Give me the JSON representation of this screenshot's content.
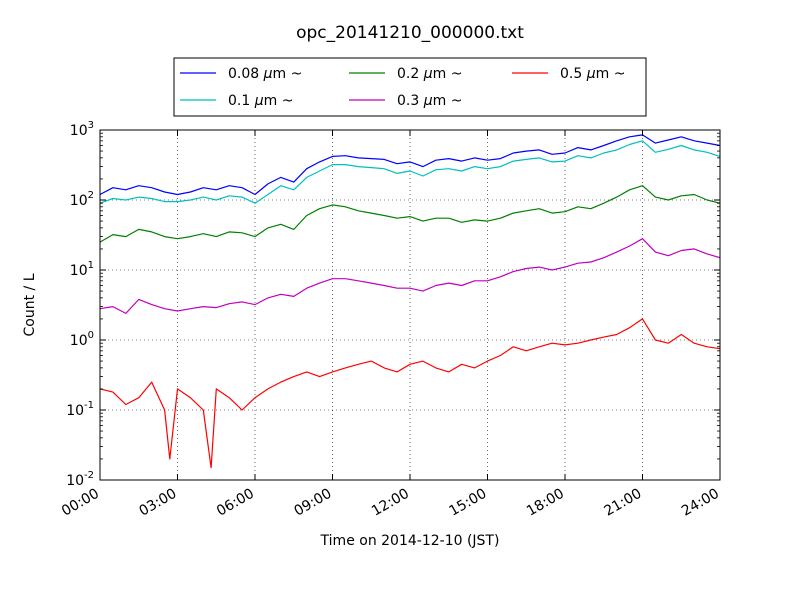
{
  "chart_data": {
    "type": "line",
    "title": "opc_20141210_000000.txt",
    "xlabel": "Time on 2014-12-10 (JST)",
    "ylabel": "Count / L",
    "y_scale": "log",
    "ylim": [
      0.01,
      1000
    ],
    "xlim": [
      "00:00",
      "24:00"
    ],
    "x_unit": "hour",
    "x_ticks": [
      {
        "hour": 0,
        "label": "00:00"
      },
      {
        "hour": 3,
        "label": "03:00"
      },
      {
        "hour": 6,
        "label": "06:00"
      },
      {
        "hour": 9,
        "label": "09:00"
      },
      {
        "hour": 12,
        "label": "12:00"
      },
      {
        "hour": 15,
        "label": "15:00"
      },
      {
        "hour": 18,
        "label": "18:00"
      },
      {
        "hour": 21,
        "label": "21:00"
      },
      {
        "hour": 24,
        "label": "24:00"
      }
    ],
    "y_ticks": [
      {
        "value": 0.01,
        "base": "10",
        "exp": "-2"
      },
      {
        "value": 0.1,
        "base": "10",
        "exp": "-1"
      },
      {
        "value": 1,
        "base": "10",
        "exp": "0"
      },
      {
        "value": 10,
        "base": "10",
        "exp": "1"
      },
      {
        "value": 100,
        "base": "10",
        "exp": "2"
      },
      {
        "value": 1000,
        "base": "10",
        "exp": "3"
      }
    ],
    "grid": true,
    "legend_position": "top",
    "series": [
      {
        "name": "0.08 μm ~",
        "legend_size": "0.08",
        "color": "#0000ff",
        "x": [
          0,
          0.5,
          1,
          1.5,
          2,
          2.5,
          3,
          3.5,
          4,
          4.5,
          5,
          5.5,
          6,
          6.5,
          7,
          7.5,
          8,
          8.5,
          9,
          9.5,
          10,
          10.5,
          11,
          11.5,
          12,
          12.5,
          13,
          13.5,
          14,
          14.5,
          15,
          15.5,
          16,
          16.5,
          17,
          17.5,
          18,
          18.5,
          19,
          19.5,
          20,
          20.5,
          21,
          21.5,
          22,
          22.5,
          23,
          23.5,
          24
        ],
        "y": [
          120,
          150,
          140,
          160,
          150,
          130,
          120,
          130,
          150,
          140,
          160,
          150,
          120,
          170,
          210,
          180,
          280,
          350,
          420,
          430,
          400,
          390,
          380,
          330,
          350,
          300,
          370,
          390,
          360,
          400,
          370,
          390,
          470,
          500,
          520,
          450,
          470,
          560,
          520,
          600,
          700,
          800,
          850,
          650,
          720,
          800,
          700,
          650,
          600
        ]
      },
      {
        "name": "0.1 μm ~",
        "legend_size": "0.1",
        "color": "#00bfbf",
        "x": [
          0,
          0.5,
          1,
          1.5,
          2,
          2.5,
          3,
          3.5,
          4,
          4.5,
          5,
          5.5,
          6,
          6.5,
          7,
          7.5,
          8,
          8.5,
          9,
          9.5,
          10,
          10.5,
          11,
          11.5,
          12,
          12.5,
          13,
          13.5,
          14,
          14.5,
          15,
          15.5,
          16,
          16.5,
          17,
          17.5,
          18,
          18.5,
          19,
          19.5,
          20,
          20.5,
          21,
          21.5,
          22,
          22.5,
          23,
          23.5,
          24
        ],
        "y": [
          90,
          105,
          100,
          110,
          105,
          95,
          95,
          100,
          110,
          100,
          115,
          110,
          90,
          120,
          160,
          140,
          210,
          260,
          320,
          320,
          300,
          290,
          280,
          240,
          260,
          220,
          270,
          280,
          260,
          300,
          280,
          300,
          360,
          380,
          400,
          350,
          360,
          430,
          400,
          470,
          520,
          620,
          700,
          480,
          530,
          600,
          520,
          480,
          420
        ]
      },
      {
        "name": "0.2 μm ~",
        "legend_size": "0.2",
        "color": "#008000",
        "x": [
          0,
          0.5,
          1,
          1.5,
          2,
          2.5,
          3,
          3.5,
          4,
          4.5,
          5,
          5.5,
          6,
          6.5,
          7,
          7.5,
          8,
          8.5,
          9,
          9.5,
          10,
          10.5,
          11,
          11.5,
          12,
          12.5,
          13,
          13.5,
          14,
          14.5,
          15,
          15.5,
          16,
          16.5,
          17,
          17.5,
          18,
          18.5,
          19,
          19.5,
          20,
          20.5,
          21,
          21.5,
          22,
          22.5,
          23,
          23.5,
          24
        ],
        "y": [
          25,
          32,
          30,
          38,
          35,
          30,
          28,
          30,
          33,
          30,
          35,
          34,
          30,
          40,
          45,
          38,
          60,
          75,
          85,
          80,
          70,
          65,
          60,
          55,
          58,
          50,
          55,
          55,
          48,
          52,
          50,
          55,
          65,
          70,
          75,
          65,
          68,
          80,
          75,
          90,
          110,
          140,
          160,
          110,
          100,
          115,
          120,
          100,
          90
        ]
      },
      {
        "name": "0.3 μm ~",
        "legend_size": "0.3",
        "color": "#bf00bf",
        "x": [
          0,
          0.5,
          1,
          1.5,
          2,
          2.5,
          3,
          3.5,
          4,
          4.5,
          5,
          5.5,
          6,
          6.5,
          7,
          7.5,
          8,
          8.5,
          9,
          9.5,
          10,
          10.5,
          11,
          11.5,
          12,
          12.5,
          13,
          13.5,
          14,
          14.5,
          15,
          15.5,
          16,
          16.5,
          17,
          17.5,
          18,
          18.5,
          19,
          19.5,
          20,
          20.5,
          21,
          21.5,
          22,
          22.5,
          23,
          23.5,
          24
        ],
        "y": [
          2.8,
          3.0,
          2.4,
          3.8,
          3.2,
          2.8,
          2.6,
          2.8,
          3.0,
          2.9,
          3.3,
          3.5,
          3.2,
          4.0,
          4.5,
          4.2,
          5.5,
          6.5,
          7.5,
          7.5,
          7.0,
          6.5,
          6.0,
          5.5,
          5.5,
          5.0,
          6.0,
          6.5,
          6.0,
          7.0,
          7.0,
          8.0,
          9.5,
          10.5,
          11,
          10,
          11,
          12.5,
          13,
          15,
          18,
          22,
          28,
          18,
          16,
          19,
          20,
          17,
          15
        ]
      },
      {
        "name": "0.5 μm ~",
        "legend_size": "0.5",
        "color": "#ff0000",
        "x": [
          0,
          0.5,
          1,
          1.5,
          2,
          2.5,
          2.7,
          3,
          3.5,
          4,
          4.3,
          4.5,
          5,
          5.5,
          6,
          6.5,
          7,
          7.5,
          8,
          8.5,
          9,
          9.5,
          10,
          10.5,
          11,
          11.5,
          12,
          12.5,
          13,
          13.5,
          14,
          14.5,
          15,
          15.5,
          16,
          16.5,
          17,
          17.5,
          18,
          18.5,
          19,
          19.5,
          20,
          20.5,
          21,
          21.5,
          22,
          22.5,
          23,
          23.5,
          24
        ],
        "y": [
          0.2,
          0.18,
          0.12,
          0.15,
          0.25,
          0.1,
          0.02,
          0.2,
          0.15,
          0.1,
          0.015,
          0.2,
          0.15,
          0.1,
          0.15,
          0.2,
          0.25,
          0.3,
          0.35,
          0.3,
          0.35,
          0.4,
          0.45,
          0.5,
          0.4,
          0.35,
          0.45,
          0.5,
          0.4,
          0.35,
          0.45,
          0.4,
          0.5,
          0.6,
          0.8,
          0.7,
          0.8,
          0.9,
          0.85,
          0.9,
          1.0,
          1.1,
          1.2,
          1.5,
          2.0,
          1.0,
          0.9,
          1.2,
          0.9,
          0.8,
          0.75
        ]
      }
    ]
  }
}
